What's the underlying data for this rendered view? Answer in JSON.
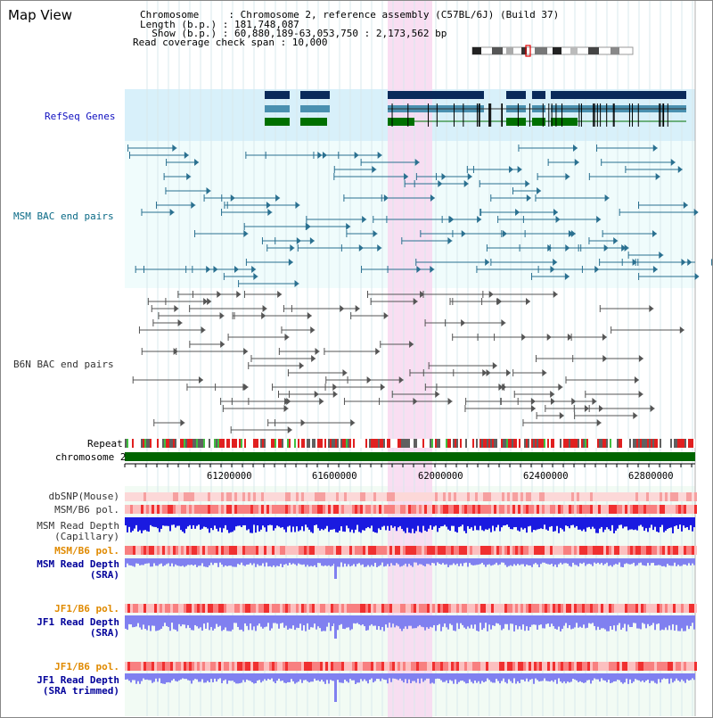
{
  "header": {
    "title": "Map View"
  },
  "info": {
    "chromosome": "Chromosome     : Chromosome 2, reference assembly (C57BL/6J) (Build 37)",
    "length": "Length (b.p.) : 181,748,087",
    "show": "  Show (b.p.) : 60,880,189-63,053,750 : 2,173,562 bp",
    "coverage": "Read coverage check span : 10,000"
  },
  "tracks": {
    "refseq": "RefSeq Genes",
    "msm_bac": "MSM BAC end pairs",
    "b6n_bac": "B6N BAC end pairs",
    "repeat": "Repeat",
    "chromosome": "chromosome 2",
    "dbsnp": "dbSNP(Mouse)",
    "msm_b6_pol": "MSM/B6 pol.",
    "msm_rd_cap_1": "MSM Read Depth",
    "msm_rd_cap_2": "(Capillary)",
    "msm_b6_pol_2": "MSM/B6 pol.",
    "msm_rd_sra_1": "MSM Read Depth",
    "msm_rd_sra_2": "(SRA)",
    "jf1_b6_pol": "JF1/B6 pol.",
    "jf1_rd_sra_1": "JF1 Read Depth",
    "jf1_rd_sra_2": "(SRA)",
    "jf1_b6_pol_2": "JF1/B6 pol.",
    "jf1_rd_trim_1": "JF1 Read Depth",
    "jf1_rd_trim_2": "(SRA trimmed)"
  },
  "axis": {
    "ticks": [
      "61200000",
      "61600000",
      "62000000",
      "62400000",
      "62800000"
    ]
  },
  "colors": {
    "refseq_bg": "#d8f0fa",
    "lane_bg": "#f0fcfc",
    "highlight": "#f8d8f0",
    "gene_navy": "#0a2a5a",
    "gene_teal": "#4a90b0",
    "gene_green": "#007000",
    "msm_bac": "#2a7090",
    "b6n_bac": "#555555",
    "chromosome_bar": "#006400",
    "depth_blue": "#1a1ae0",
    "depth_light": "#8080f0",
    "pol_red": "#f04040"
  }
}
